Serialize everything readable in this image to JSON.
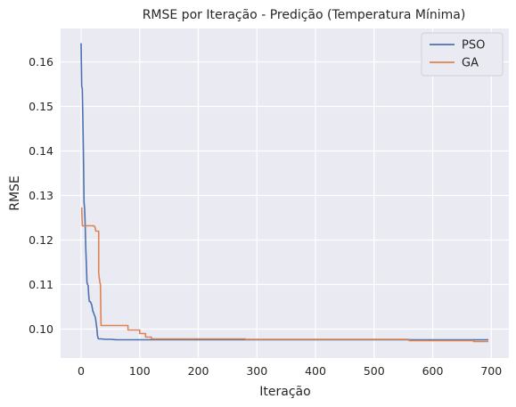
{
  "chart_data": {
    "type": "line",
    "title": "RMSE por Iteração - Predição (Temperatura Mínima)",
    "xlabel": "Iteração",
    "ylabel": "RMSE",
    "xlim": [
      -35,
      730
    ],
    "ylim": [
      0.0935,
      0.1675
    ],
    "xticks": [
      0,
      100,
      200,
      300,
      400,
      500,
      600,
      700
    ],
    "yticks": [
      0.1,
      0.11,
      0.12,
      0.13,
      0.14,
      0.15,
      0.16
    ],
    "ytick_labels": [
      "0.10",
      "0.11",
      "0.12",
      "0.13",
      "0.14",
      "0.15",
      "0.16"
    ],
    "grid": true,
    "legend_position": "top-right",
    "background": "#eaeaf2",
    "series": [
      {
        "name": "PSO",
        "color": "#4c72b0",
        "x": [
          0,
          1,
          2,
          3,
          4,
          5,
          6,
          7,
          8,
          9,
          10,
          11,
          12,
          13,
          14,
          15,
          16,
          17,
          18,
          19,
          20,
          21,
          22,
          23,
          24,
          25,
          26,
          27,
          28,
          29,
          30,
          35,
          40,
          50,
          60,
          80,
          100,
          150,
          200,
          300,
          400,
          500,
          600,
          695
        ],
        "y": [
          0.1642,
          0.1545,
          0.154,
          0.147,
          0.139,
          0.1285,
          0.127,
          0.123,
          0.118,
          0.1145,
          0.1105,
          0.11,
          0.1098,
          0.1075,
          0.1062,
          0.1062,
          0.1061,
          0.1058,
          0.1055,
          0.1048,
          0.104,
          0.1038,
          0.1034,
          0.103,
          0.1028,
          0.102,
          0.101,
          0.1,
          0.0985,
          0.0979,
          0.0978,
          0.0978,
          0.0977,
          0.0977,
          0.0976,
          0.0976,
          0.0976,
          0.0976,
          0.0976,
          0.0976,
          0.0976,
          0.0976,
          0.0976,
          0.0976
        ]
      },
      {
        "name": "GA",
        "color": "#dd8452",
        "x": [
          0,
          1,
          2,
          3,
          5,
          10,
          20,
          22,
          24,
          25,
          28,
          29,
          30,
          30,
          32,
          33,
          34,
          36,
          60,
          80,
          80,
          100,
          100,
          110,
          110,
          120,
          120,
          280,
          280,
          560,
          560,
          670,
          670,
          695
        ],
        "y": [
          0.1272,
          0.1272,
          0.1232,
          0.1232,
          0.1232,
          0.1232,
          0.1232,
          0.1232,
          0.1228,
          0.122,
          0.122,
          0.122,
          0.122,
          0.1125,
          0.1105,
          0.11,
          0.1008,
          0.1008,
          0.1008,
          0.1008,
          0.0998,
          0.0998,
          0.099,
          0.099,
          0.0982,
          0.0982,
          0.0978,
          0.0978,
          0.0977,
          0.0977,
          0.0974,
          0.0974,
          0.0972,
          0.0972
        ]
      }
    ]
  }
}
